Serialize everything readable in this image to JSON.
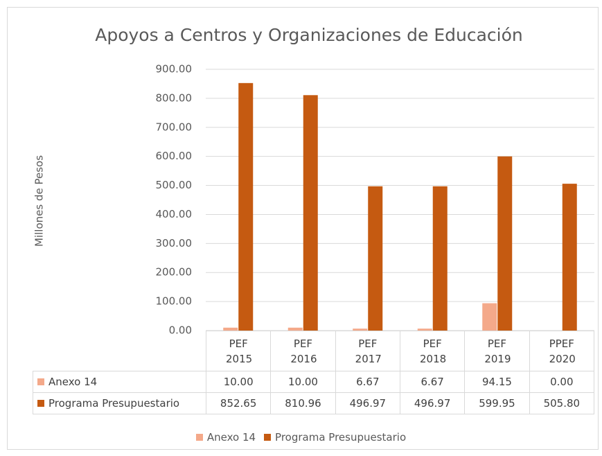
{
  "chart_data": {
    "type": "bar",
    "title": "Apoyos a Centros y Organizaciones de Educación",
    "y_label": "Millones de Pesos",
    "categories": [
      "PEF 2015",
      "PEF 2016",
      "PEF 2017",
      "PEF 2018",
      "PEF 2019",
      "PPEF 2020"
    ],
    "series": [
      {
        "name": "Anexo 14",
        "color": "#f4a98a",
        "values": [
          10,
          10,
          6.67,
          6.67,
          94.15,
          0
        ],
        "value_labels": [
          "10.00",
          "10.00",
          "6.67",
          "6.67",
          "94.15",
          "0.00"
        ]
      },
      {
        "name": "Programa Presupuestario",
        "color": "#c55a11",
        "values": [
          852.65,
          810.96,
          496.97,
          496.97,
          599.95,
          505.8
        ],
        "value_labels": [
          "852.65",
          "810.96",
          "496.97",
          "496.97",
          "599.95",
          "505.80"
        ]
      }
    ],
    "ylim": [
      0,
      900
    ],
    "yticks": [
      {
        "value": 0,
        "label": "0.00"
      },
      {
        "value": 100,
        "label": "100.00"
      },
      {
        "value": 200,
        "label": "200.00"
      },
      {
        "value": 300,
        "label": "300.00"
      },
      {
        "value": 400,
        "label": "400.00"
      },
      {
        "value": 500,
        "label": "500.00"
      },
      {
        "value": 600,
        "label": "600.00"
      },
      {
        "value": 700,
        "label": "700.00"
      },
      {
        "value": 800,
        "label": "800.00"
      },
      {
        "value": 900,
        "label": "900.00"
      }
    ],
    "grid": true,
    "legend": "bottom",
    "data_table": true
  }
}
